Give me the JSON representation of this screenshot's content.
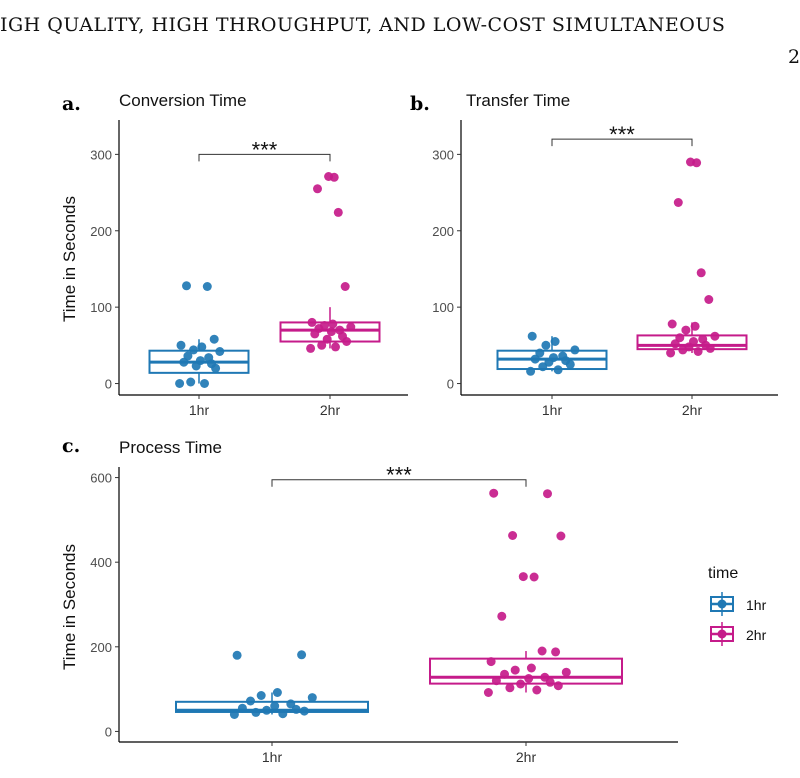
{
  "page": {
    "header": "IGH QUALITY, HIGH THROUGHPUT, AND LOW-COST SIMULTANEOUS",
    "page_number": "2"
  },
  "colors": {
    "hr1": "#1f78b4",
    "hr2": "#c51b8a",
    "axis": "#000000",
    "grid": "#333333"
  },
  "legend": {
    "title": "time",
    "items": [
      {
        "label": "1hr",
        "color": "#1f78b4"
      },
      {
        "label": "2hr",
        "color": "#c51b8a"
      }
    ]
  },
  "chart_data": [
    {
      "id": "conversion",
      "panel_letter": "a.",
      "title": "Conversion Time",
      "type": "box",
      "ylabel": "Time in Seconds",
      "ylim": [
        -15,
        345
      ],
      "yticks": [
        0,
        100,
        200,
        300
      ],
      "categories": [
        "1hr",
        "2hr"
      ],
      "significance": {
        "label": "***",
        "y": 300
      },
      "boxes": [
        {
          "category": "1hr",
          "q1": 14,
          "median": 28,
          "q3": 43,
          "whisker_low": 0,
          "whisker_high": 58,
          "points": [
            0,
            0,
            2,
            20,
            23,
            26,
            28,
            30,
            34,
            36,
            42,
            44,
            48,
            50,
            58,
            127,
            128
          ]
        },
        {
          "category": "2hr",
          "q1": 55,
          "median": 70,
          "q3": 80,
          "whisker_low": 46,
          "whisker_high": 100,
          "points": [
            46,
            48,
            50,
            55,
            58,
            62,
            65,
            68,
            70,
            72,
            74,
            76,
            78,
            80,
            127,
            224,
            255,
            270,
            271
          ]
        }
      ]
    },
    {
      "id": "transfer",
      "panel_letter": "b.",
      "title": "Transfer Time",
      "type": "box",
      "ylabel": "",
      "ylim": [
        -15,
        345
      ],
      "yticks": [
        0,
        100,
        200,
        300
      ],
      "categories": [
        "1hr",
        "2hr"
      ],
      "significance": {
        "label": "***",
        "y": 320
      },
      "boxes": [
        {
          "category": "1hr",
          "q1": 19,
          "median": 32,
          "q3": 43,
          "whisker_low": 16,
          "whisker_high": 62,
          "points": [
            16,
            18,
            22,
            25,
            28,
            30,
            32,
            34,
            36,
            40,
            44,
            50,
            55,
            62
          ]
        },
        {
          "category": "2hr",
          "q1": 45,
          "median": 50,
          "q3": 63,
          "whisker_low": 40,
          "whisker_high": 80,
          "points": [
            40,
            42,
            44,
            46,
            48,
            50,
            52,
            55,
            58,
            60,
            62,
            70,
            75,
            78,
            110,
            145,
            237,
            289,
            290
          ]
        }
      ]
    },
    {
      "id": "process",
      "panel_letter": "c.",
      "title": "Process Time",
      "type": "box",
      "ylabel": "Time in Seconds",
      "ylim": [
        -25,
        625
      ],
      "yticks": [
        0,
        200,
        400,
        600
      ],
      "categories": [
        "1hr",
        "2hr"
      ],
      "significance": {
        "label": "***",
        "y": 595
      },
      "boxes": [
        {
          "category": "1hr",
          "q1": 46,
          "median": 50,
          "q3": 70,
          "whisker_low": 40,
          "whisker_high": 92,
          "points": [
            40,
            42,
            45,
            48,
            50,
            52,
            55,
            60,
            65,
            72,
            80,
            85,
            92,
            180,
            181
          ]
        },
        {
          "category": "2hr",
          "q1": 113,
          "median": 128,
          "q3": 172,
          "whisker_low": 92,
          "whisker_high": 190,
          "points": [
            92,
            98,
            103,
            108,
            112,
            116,
            120,
            125,
            128,
            135,
            140,
            145,
            150,
            165,
            188,
            190,
            272,
            365,
            366,
            462,
            463,
            562,
            563
          ]
        }
      ]
    }
  ]
}
